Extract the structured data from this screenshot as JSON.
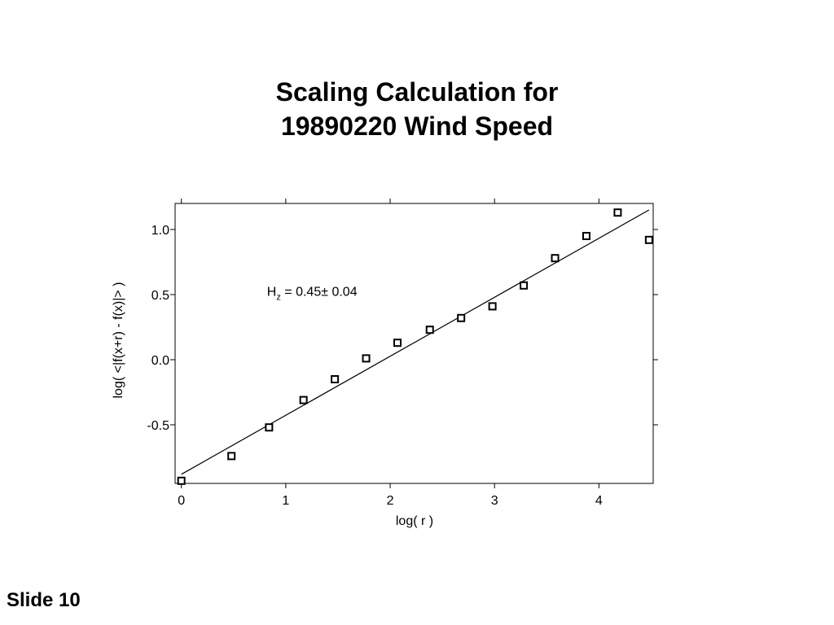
{
  "slide": {
    "title_line1": "Scaling Calculation for",
    "title_line2": "19890220 Wind Speed",
    "slide_number": "Slide 10"
  },
  "chart_data": {
    "type": "scatter",
    "title": "Scaling Calculation for 19890220 Wind Speed",
    "xlabel": "log( r )",
    "ylabel": "log( <|f(x+r) - f(x)|> )",
    "xlim": [
      -0.06,
      4.52
    ],
    "ylim": [
      -0.95,
      1.2
    ],
    "x_ticks": [
      0,
      1,
      2,
      3,
      4
    ],
    "x_tick_labels": [
      "0",
      "1",
      "2",
      "3",
      "4"
    ],
    "y_ticks": [
      1.0,
      0.5,
      0.0,
      -0.5
    ],
    "y_tick_labels": [
      "1.0",
      "0.5",
      "0.0",
      "-0.5"
    ],
    "grid": false,
    "series": [
      {
        "marker": "open-square",
        "points": [
          {
            "x": 0.0,
            "y": -0.93
          },
          {
            "x": 0.48,
            "y": -0.74
          },
          {
            "x": 0.84,
            "y": -0.52
          },
          {
            "x": 1.17,
            "y": -0.31
          },
          {
            "x": 1.47,
            "y": -0.15
          },
          {
            "x": 1.77,
            "y": 0.01
          },
          {
            "x": 2.07,
            "y": 0.13
          },
          {
            "x": 2.38,
            "y": 0.23
          },
          {
            "x": 2.68,
            "y": 0.32
          },
          {
            "x": 2.98,
            "y": 0.41
          },
          {
            "x": 3.28,
            "y": 0.57
          },
          {
            "x": 3.58,
            "y": 0.78
          },
          {
            "x": 3.88,
            "y": 0.95
          },
          {
            "x": 4.18,
            "y": 1.13
          },
          {
            "x": 4.48,
            "y": 0.92
          }
        ]
      }
    ],
    "fit_line": {
      "x": [
        0.0,
        4.48
      ],
      "y": [
        -0.88,
        1.15
      ]
    },
    "annotation": {
      "prefix": "H",
      "subscript": "z",
      "text": " = 0.45± 0.04",
      "x": 0.82,
      "y": 0.49
    }
  }
}
